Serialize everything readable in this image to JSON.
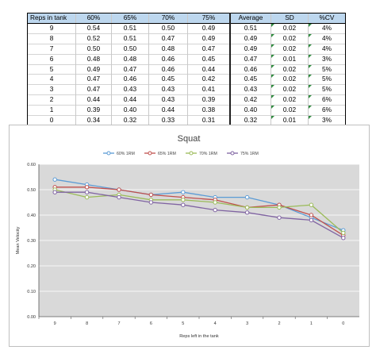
{
  "table": {
    "headers": [
      "Reps in tank",
      "60%",
      "65%",
      "70%",
      "75%",
      "Average",
      "SD",
      "%CV"
    ],
    "rows": [
      [
        "9",
        "0.54",
        "0.51",
        "0.50",
        "0.49",
        "0.51",
        "0.02",
        "4%"
      ],
      [
        "8",
        "0.52",
        "0.51",
        "0.47",
        "0.49",
        "0.49",
        "0.02",
        "4%"
      ],
      [
        "7",
        "0.50",
        "0.50",
        "0.48",
        "0.47",
        "0.49",
        "0.02",
        "4%"
      ],
      [
        "6",
        "0.48",
        "0.48",
        "0.46",
        "0.45",
        "0.47",
        "0.01",
        "3%"
      ],
      [
        "5",
        "0.49",
        "0.47",
        "0.46",
        "0.44",
        "0.46",
        "0.02",
        "5%"
      ],
      [
        "4",
        "0.47",
        "0.46",
        "0.45",
        "0.42",
        "0.45",
        "0.02",
        "5%"
      ],
      [
        "3",
        "0.47",
        "0.43",
        "0.43",
        "0.41",
        "0.43",
        "0.02",
        "5%"
      ],
      [
        "2",
        "0.44",
        "0.44",
        "0.43",
        "0.39",
        "0.42",
        "0.02",
        "6%"
      ],
      [
        "1",
        "0.39",
        "0.40",
        "0.44",
        "0.38",
        "0.40",
        "0.02",
        "6%"
      ],
      [
        "0",
        "0.34",
        "0.32",
        "0.33",
        "0.31",
        "0.32",
        "0.01",
        "3%"
      ]
    ]
  },
  "chart_data": {
    "type": "line",
    "title": "Squat",
    "xlabel": "Reps left in the tank",
    "ylabel": "Mean Velocity",
    "categories": [
      "9",
      "8",
      "7",
      "6",
      "5",
      "4",
      "3",
      "2",
      "1",
      "0"
    ],
    "ylim": [
      0.0,
      0.6
    ],
    "yticks": [
      "0.00",
      "0.10",
      "0.20",
      "0.30",
      "0.40",
      "0.50",
      "0.60"
    ],
    "grid": true,
    "legend_position": "top",
    "background": "#d9d9d9",
    "series": [
      {
        "name": "60% 1RM",
        "color": "#5b9bd5",
        "values": [
          0.54,
          0.52,
          0.5,
          0.48,
          0.49,
          0.47,
          0.47,
          0.44,
          0.39,
          0.34
        ]
      },
      {
        "name": "65% 1RM",
        "color": "#c0504d",
        "values": [
          0.51,
          0.51,
          0.5,
          0.48,
          0.47,
          0.46,
          0.43,
          0.44,
          0.4,
          0.32
        ]
      },
      {
        "name": "70% 1RM",
        "color": "#9bbb59",
        "values": [
          0.5,
          0.47,
          0.48,
          0.46,
          0.46,
          0.45,
          0.43,
          0.43,
          0.44,
          0.33
        ]
      },
      {
        "name": "75% 1RM",
        "color": "#8064a2",
        "values": [
          0.49,
          0.49,
          0.47,
          0.45,
          0.44,
          0.42,
          0.41,
          0.39,
          0.38,
          0.31
        ]
      }
    ]
  }
}
